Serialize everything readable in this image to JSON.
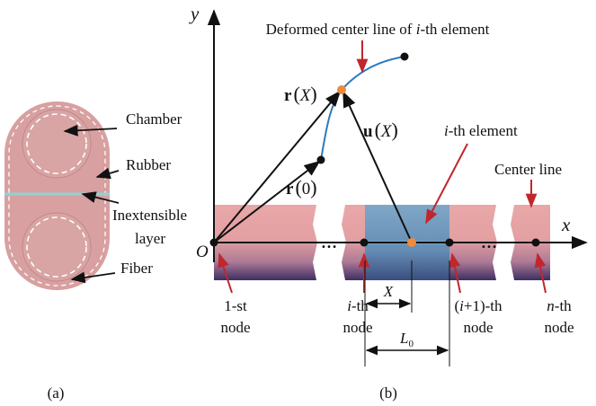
{
  "panel_a": {
    "chamber": "Chamber",
    "rubber": "Rubber",
    "inextensible": "Inextensible",
    "layer": "layer",
    "fiber": "Fiber",
    "caption": "(a)"
  },
  "panel_b": {
    "y_axis": "y",
    "x_axis": "x",
    "origin": "O",
    "title": {
      "start": "Deformed center line of ",
      "italic": "i",
      "end": "-th element"
    },
    "r_X": {
      "vector": "r",
      "arg": "X"
    },
    "u_X": {
      "vector": "u",
      "arg": "X"
    },
    "r_0": {
      "vector": "r",
      "arg": "0"
    },
    "element": {
      "italic": "i",
      "end": "-th element"
    },
    "center_line": "Center line",
    "ellipsis": "…",
    "nodes": [
      {
        "text": "1-st",
        "line2": "node"
      },
      {
        "italic": "i",
        "end": "-th",
        "line2": "node"
      },
      {
        "start": "(",
        "italic": "i",
        "end": "+1)-th",
        "line2": "node"
      },
      {
        "italic": "n",
        "end": "-th",
        "line2": "node"
      }
    ],
    "dim_X": "X",
    "dim_L0": {
      "symbol": "L",
      "sub": "0"
    },
    "caption": "(b)"
  }
}
